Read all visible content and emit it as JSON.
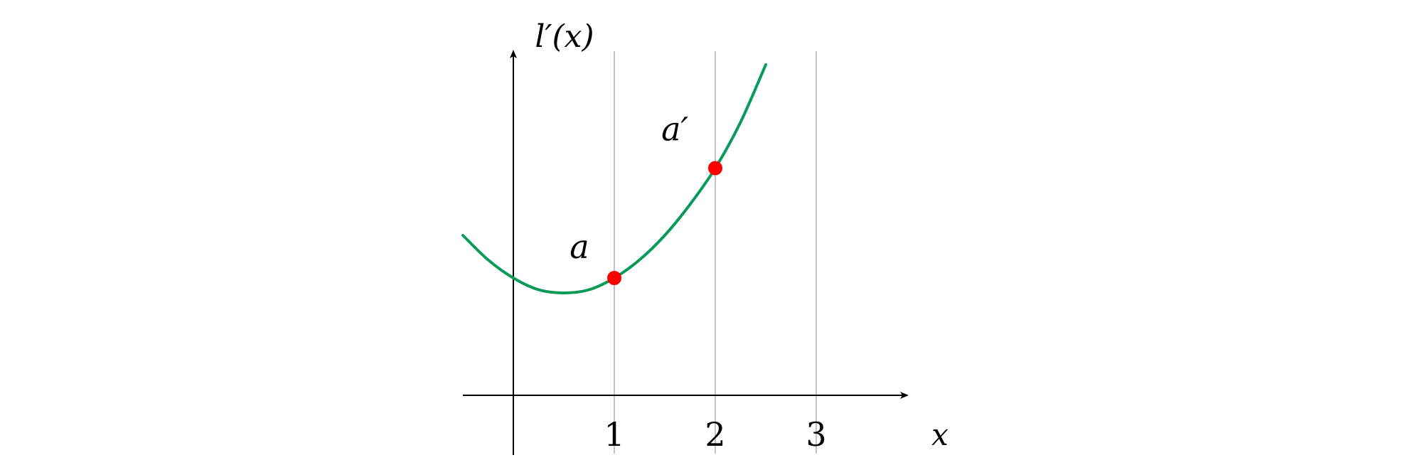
{
  "chart_data": {
    "type": "line",
    "title": "",
    "xlabel": "x",
    "ylabel": "l′(x)",
    "xlim": [
      -0.5,
      3.9
    ],
    "ylim": [
      0,
      3.4
    ],
    "x_ticks": [
      "1",
      "2",
      "3"
    ],
    "grid": "vertical lines at x = 1, 2, 3",
    "series": [
      {
        "color": "#0a9a5a",
        "x": [
          -0.5,
          -0.25,
          0,
          0.25,
          0.5,
          0.75,
          1,
          1.25,
          1.5,
          1.75,
          2,
          2.25,
          2.5
        ],
        "y": [
          1.5,
          1.27,
          1.1,
          0.99,
          0.96,
          0.99,
          1.1,
          1.27,
          1.5,
          1.79,
          2.13,
          2.56,
          3.1
        ]
      }
    ],
    "points": [
      {
        "label": "a",
        "x": 1,
        "y": 1.1,
        "color": "#ff0000"
      },
      {
        "label": "a′",
        "x": 2,
        "y": 2.13,
        "color": "#ff0000"
      }
    ]
  }
}
